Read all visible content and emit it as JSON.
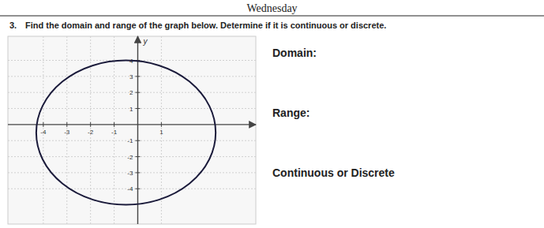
{
  "chart_data": {
    "type": "ellipse",
    "title": "Wednesday",
    "annotations": [
      "3.",
      "Find the domain and range of the graph below. Determine if it is continuous or discrete.",
      "Domain:",
      "Range:",
      "Continuous or Discrete"
    ],
    "ylabel": "y",
    "cx": -0.5,
    "cy": -0.5,
    "rx": 3.8,
    "ry": 4.5,
    "color": "#1a1a3a",
    "xlim": [
      -5.5,
      5.0
    ],
    "ylim": [
      -6.2,
      5.5
    ],
    "xticks": [
      -4,
      -3,
      -2,
      -1,
      1
    ],
    "yticks": [
      -4,
      -3,
      -2,
      -1,
      1,
      2,
      3,
      4
    ],
    "grid": true
  }
}
